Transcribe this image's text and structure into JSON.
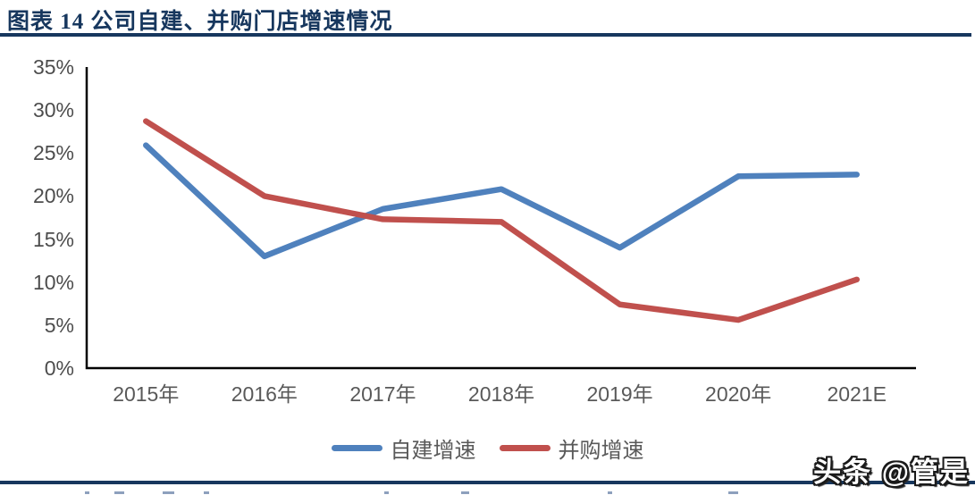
{
  "header": {
    "title": "图表 14  公司自建、并购门店增速情况"
  },
  "watermark": "头条 @管是",
  "colors": {
    "accent_rule": "#17375E",
    "axis_line": "#000000",
    "tick_text": "#595959",
    "series_blue": "#4F81BD",
    "series_red": "#C0504D"
  },
  "chart_data": {
    "type": "line",
    "title": "",
    "xlabel": "",
    "ylabel": "",
    "categories": [
      "2015年",
      "2016年",
      "2017年",
      "2018年",
      "2019年",
      "2020年",
      "2021E"
    ],
    "series": [
      {
        "name": "自建增速",
        "color": "#4F81BD",
        "values": [
          25.9,
          13.0,
          18.5,
          20.8,
          14.0,
          22.3,
          22.5
        ]
      },
      {
        "name": "并购增速",
        "color": "#C0504D",
        "values": [
          28.7,
          20.0,
          17.3,
          17.0,
          7.4,
          5.6,
          10.3
        ]
      }
    ],
    "ylim": [
      0,
      35
    ],
    "ytick_step": 5,
    "ytick_format": "percent",
    "grid": false,
    "legend_position": "bottom"
  }
}
